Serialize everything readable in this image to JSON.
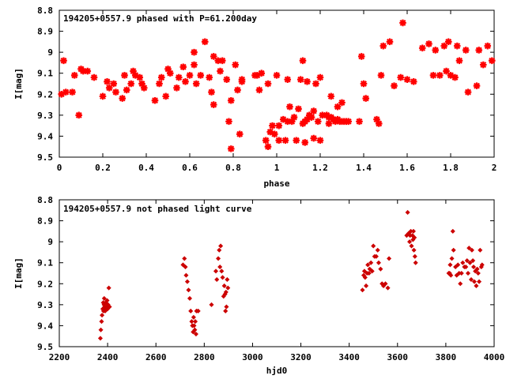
{
  "chart_data": [
    {
      "type": "scatter",
      "title": "194205+0557.9 phased with P=61.200day",
      "xlabel": "phase",
      "ylabel": "I[mag]",
      "xlim": [
        0,
        2
      ],
      "ylim": [
        8.8,
        9.5
      ],
      "y_inverted": true,
      "marker_color": "#ff0000",
      "marker": "asterisk",
      "x_ticks": [
        "0",
        "0.2",
        "0.4",
        "0.6",
        "0.8",
        "1",
        "1.2",
        "1.4",
        "1.6",
        "1.8",
        "2"
      ],
      "y_ticks": [
        "8.8",
        "8.9",
        "9",
        "9.1",
        "9.2",
        "9.3",
        "9.4",
        "9.5"
      ],
      "points": [
        [
          0.01,
          9.2
        ],
        [
          0.02,
          9.04
        ],
        [
          0.03,
          9.19
        ],
        [
          0.06,
          9.19
        ],
        [
          0.07,
          9.11
        ],
        [
          0.09,
          9.3
        ],
        [
          0.1,
          9.08
        ],
        [
          0.11,
          9.09
        ],
        [
          0.13,
          9.09
        ],
        [
          0.16,
          9.12
        ],
        [
          0.2,
          9.21
        ],
        [
          0.22,
          9.14
        ],
        [
          0.23,
          9.17
        ],
        [
          0.25,
          9.15
        ],
        [
          0.26,
          9.19
        ],
        [
          0.29,
          9.22
        ],
        [
          0.3,
          9.11
        ],
        [
          0.31,
          9.18
        ],
        [
          0.33,
          9.15
        ],
        [
          0.34,
          9.09
        ],
        [
          0.35,
          9.11
        ],
        [
          0.37,
          9.12
        ],
        [
          0.38,
          9.15
        ],
        [
          0.39,
          9.17
        ],
        [
          0.44,
          9.23
        ],
        [
          0.46,
          9.15
        ],
        [
          0.47,
          9.12
        ],
        [
          0.49,
          9.21
        ],
        [
          0.5,
          9.08
        ],
        [
          0.51,
          9.1
        ],
        [
          0.54,
          9.17
        ],
        [
          0.55,
          9.12
        ],
        [
          0.57,
          9.07
        ],
        [
          0.58,
          9.14
        ],
        [
          0.6,
          9.11
        ],
        [
          0.62,
          9.06
        ],
        [
          0.62,
          9.0
        ],
        [
          0.63,
          9.15
        ],
        [
          0.65,
          9.11
        ],
        [
          0.67,
          8.95
        ],
        [
          0.69,
          9.12
        ],
        [
          0.7,
          9.19
        ],
        [
          0.71,
          9.02
        ],
        [
          0.71,
          9.25
        ],
        [
          0.73,
          9.04
        ],
        [
          0.74,
          9.09
        ],
        [
          0.75,
          9.04
        ],
        [
          0.77,
          9.13
        ],
        [
          0.78,
          9.33
        ],
        [
          0.79,
          9.46
        ],
        [
          0.79,
          9.23
        ],
        [
          0.81,
          9.06
        ],
        [
          0.82,
          9.18
        ],
        [
          0.83,
          9.39
        ],
        [
          0.84,
          9.13
        ],
        [
          0.84,
          9.14
        ],
        [
          0.9,
          9.11
        ],
        [
          0.91,
          9.11
        ],
        [
          0.92,
          9.18
        ],
        [
          0.93,
          9.1
        ],
        [
          0.95,
          9.42
        ],
        [
          0.96,
          9.15
        ],
        [
          0.96,
          9.45
        ],
        [
          0.97,
          9.38
        ],
        [
          0.98,
          9.35
        ],
        [
          0.99,
          9.39
        ],
        [
          1.0,
          9.11
        ],
        [
          1.01,
          9.35
        ],
        [
          1.01,
          9.42
        ],
        [
          1.03,
          9.32
        ],
        [
          1.04,
          9.42
        ],
        [
          1.05,
          9.13
        ],
        [
          1.05,
          9.33
        ],
        [
          1.06,
          9.26
        ],
        [
          1.07,
          9.33
        ],
        [
          1.08,
          9.31
        ],
        [
          1.09,
          9.42
        ],
        [
          1.1,
          9.27
        ],
        [
          1.11,
          9.13
        ],
        [
          1.12,
          9.04
        ],
        [
          1.12,
          9.34
        ],
        [
          1.13,
          9.43
        ],
        [
          1.13,
          9.33
        ],
        [
          1.14,
          9.32
        ],
        [
          1.14,
          9.14
        ],
        [
          1.15,
          9.3
        ],
        [
          1.16,
          9.31
        ],
        [
          1.17,
          9.28
        ],
        [
          1.17,
          9.41
        ],
        [
          1.18,
          9.15
        ],
        [
          1.19,
          9.33
        ],
        [
          1.2,
          9.12
        ],
        [
          1.2,
          9.42
        ],
        [
          1.21,
          9.3
        ],
        [
          1.23,
          9.3
        ],
        [
          1.24,
          9.31
        ],
        [
          1.24,
          9.34
        ],
        [
          1.25,
          9.31
        ],
        [
          1.25,
          9.21
        ],
        [
          1.26,
          9.32
        ],
        [
          1.27,
          9.33
        ],
        [
          1.28,
          9.32
        ],
        [
          1.28,
          9.26
        ],
        [
          1.29,
          9.33
        ],
        [
          1.3,
          9.33
        ],
        [
          1.3,
          9.24
        ],
        [
          1.31,
          9.33
        ],
        [
          1.32,
          9.33
        ],
        [
          1.33,
          9.33
        ],
        [
          1.38,
          9.33
        ],
        [
          1.39,
          9.02
        ],
        [
          1.4,
          9.15
        ],
        [
          1.41,
          9.22
        ],
        [
          1.46,
          9.32
        ],
        [
          1.47,
          9.34
        ],
        [
          1.48,
          9.11
        ],
        [
          1.49,
          8.97
        ],
        [
          1.52,
          8.95
        ],
        [
          1.54,
          9.16
        ],
        [
          1.57,
          9.12
        ],
        [
          1.58,
          8.86
        ],
        [
          1.6,
          9.13
        ],
        [
          1.63,
          9.14
        ],
        [
          1.67,
          8.98
        ],
        [
          1.7,
          8.96
        ],
        [
          1.72,
          9.11
        ],
        [
          1.73,
          8.99
        ],
        [
          1.75,
          9.11
        ],
        [
          1.77,
          8.97
        ],
        [
          1.78,
          9.09
        ],
        [
          1.79,
          8.95
        ],
        [
          1.8,
          9.11
        ],
        [
          1.82,
          9.12
        ],
        [
          1.83,
          8.97
        ],
        [
          1.84,
          9.04
        ],
        [
          1.87,
          8.99
        ],
        [
          1.88,
          9.19
        ],
        [
          1.92,
          9.16
        ],
        [
          1.93,
          8.99
        ],
        [
          1.95,
          9.06
        ],
        [
          1.97,
          8.97
        ],
        [
          1.99,
          9.04
        ]
      ]
    },
    {
      "type": "scatter",
      "title": "194205+0557.9 not phased light curve",
      "xlabel": "hjd0",
      "ylabel": "I[mag]",
      "xlim": [
        2200,
        4000
      ],
      "ylim": [
        8.8,
        9.5
      ],
      "y_inverted": true,
      "marker_color": "#cc0000",
      "marker": "diamond",
      "x_ticks": [
        "2200",
        "2400",
        "2600",
        "2800",
        "3000",
        "3200",
        "3400",
        "3600",
        "3800",
        "4000"
      ],
      "y_ticks": [
        "8.8",
        "8.9",
        "9",
        "9.1",
        "9.2",
        "9.3",
        "9.4",
        "9.5"
      ],
      "points": [
        [
          2370,
          9.46
        ],
        [
          2372,
          9.42
        ],
        [
          2375,
          9.38
        ],
        [
          2377,
          9.35
        ],
        [
          2380,
          9.32
        ],
        [
          2382,
          9.29
        ],
        [
          2383,
          9.33
        ],
        [
          2385,
          9.3
        ],
        [
          2386,
          9.27
        ],
        [
          2388,
          9.31
        ],
        [
          2390,
          9.33
        ],
        [
          2392,
          9.29
        ],
        [
          2394,
          9.32
        ],
        [
          2396,
          9.31
        ],
        [
          2398,
          9.28
        ],
        [
          2400,
          9.32
        ],
        [
          2402,
          9.3
        ],
        [
          2405,
          9.22
        ],
        [
          2408,
          9.31
        ],
        [
          2712,
          9.11
        ],
        [
          2718,
          9.08
        ],
        [
          2722,
          9.12
        ],
        [
          2725,
          9.16
        ],
        [
          2730,
          9.19
        ],
        [
          2735,
          9.23
        ],
        [
          2740,
          9.27
        ],
        [
          2744,
          9.33
        ],
        [
          2748,
          9.38
        ],
        [
          2751,
          9.4
        ],
        [
          2754,
          9.43
        ],
        [
          2756,
          9.36
        ],
        [
          2758,
          9.4
        ],
        [
          2761,
          9.42
        ],
        [
          2763,
          9.38
        ],
        [
          2766,
          9.44
        ],
        [
          2768,
          9.33
        ],
        [
          2775,
          9.33
        ],
        [
          2830,
          9.3
        ],
        [
          2848,
          9.14
        ],
        [
          2852,
          9.18
        ],
        [
          2858,
          9.08
        ],
        [
          2862,
          9.04
        ],
        [
          2865,
          9.12
        ],
        [
          2868,
          9.02
        ],
        [
          2872,
          9.14
        ],
        [
          2876,
          9.17
        ],
        [
          2880,
          9.26
        ],
        [
          2883,
          9.21
        ],
        [
          2886,
          9.25
        ],
        [
          2888,
          9.33
        ],
        [
          2890,
          9.24
        ],
        [
          2892,
          9.31
        ],
        [
          2895,
          9.18
        ],
        [
          2898,
          9.22
        ],
        [
          3455,
          9.23
        ],
        [
          3460,
          9.16
        ],
        [
          3463,
          9.14
        ],
        [
          3466,
          9.17
        ],
        [
          3470,
          9.21
        ],
        [
          3474,
          9.15
        ],
        [
          3477,
          9.11
        ],
        [
          3482,
          9.15
        ],
        [
          3485,
          9.13
        ],
        [
          3490,
          9.1
        ],
        [
          3495,
          9.14
        ],
        [
          3500,
          9.02
        ],
        [
          3505,
          9.07
        ],
        [
          3512,
          9.07
        ],
        [
          3518,
          9.04
        ],
        [
          3522,
          9.1
        ],
        [
          3530,
          9.13
        ],
        [
          3536,
          9.2
        ],
        [
          3542,
          9.21
        ],
        [
          3550,
          9.2
        ],
        [
          3560,
          9.22
        ],
        [
          3565,
          9.08
        ],
        [
          3638,
          8.97
        ],
        [
          3642,
          8.86
        ],
        [
          3646,
          8.96
        ],
        [
          3650,
          9.0
        ],
        [
          3652,
          8.97
        ],
        [
          3655,
          8.95
        ],
        [
          3658,
          9.02
        ],
        [
          3662,
          8.97
        ],
        [
          3664,
          8.99
        ],
        [
          3666,
          8.95
        ],
        [
          3668,
          9.04
        ],
        [
          3670,
          8.98
        ],
        [
          3672,
          9.07
        ],
        [
          3675,
          9.1
        ],
        [
          3812,
          9.15
        ],
        [
          3816,
          9.15
        ],
        [
          3818,
          9.11
        ],
        [
          3821,
          9.16
        ],
        [
          3825,
          9.08
        ],
        [
          3829,
          8.95
        ],
        [
          3832,
          9.04
        ],
        [
          3840,
          9.12
        ],
        [
          3845,
          9.16
        ],
        [
          3850,
          9.11
        ],
        [
          3855,
          9.15
        ],
        [
          3860,
          9.2
        ],
        [
          3865,
          9.15
        ],
        [
          3870,
          9.1
        ],
        [
          3877,
          9.12
        ],
        [
          3883,
          9.12
        ],
        [
          3888,
          9.09
        ],
        [
          3892,
          9.15
        ],
        [
          3896,
          9.03
        ],
        [
          3900,
          9.1
        ],
        [
          3905,
          9.18
        ],
        [
          3908,
          9.04
        ],
        [
          3912,
          9.09
        ],
        [
          3915,
          9.12
        ],
        [
          3918,
          9.19
        ],
        [
          3922,
          9.14
        ],
        [
          3926,
          9.21
        ],
        [
          3930,
          9.13
        ],
        [
          3934,
          9.15
        ],
        [
          3938,
          9.19
        ],
        [
          3942,
          9.04
        ],
        [
          3947,
          9.12
        ],
        [
          3950,
          9.11
        ]
      ]
    }
  ]
}
